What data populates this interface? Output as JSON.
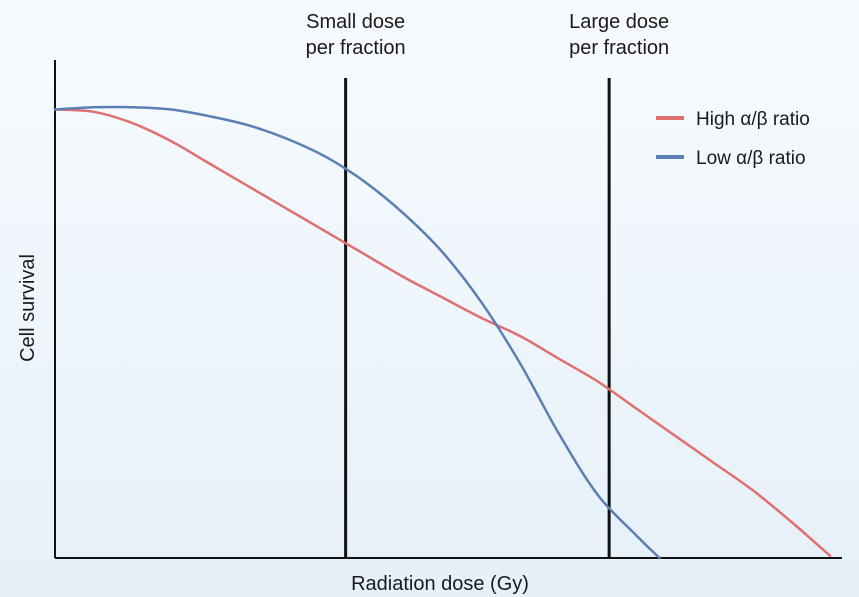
{
  "chart_data": {
    "type": "line",
    "title": "",
    "xlabel": "Radiation dose (Gy)",
    "ylabel": "Cell survival",
    "xlim": [
      0,
      10
    ],
    "ylim": [
      0,
      1
    ],
    "grid": false,
    "legend_position": "top-right",
    "series": [
      {
        "name": "High α/β ratio",
        "color": "#e07070",
        "x": [
          0,
          0.5,
          1,
          1.5,
          2,
          2.5,
          3,
          3.5,
          4,
          4.5,
          5,
          5.5,
          6,
          6.5,
          7,
          7.5,
          8,
          8.5,
          9,
          9.5,
          10
        ],
        "y": [
          0.99,
          0.985,
          0.96,
          0.92,
          0.87,
          0.82,
          0.77,
          0.72,
          0.67,
          0.62,
          0.575,
          0.53,
          0.49,
          0.44,
          0.39,
          0.33,
          0.27,
          0.21,
          0.15,
          0.08,
          0.005
        ]
      },
      {
        "name": "Low α/β ratio",
        "color": "#5a7fb5",
        "x": [
          0,
          0.5,
          1,
          1.5,
          2,
          2.5,
          3,
          3.5,
          4,
          4.5,
          5,
          5.5,
          6,
          6.5,
          7,
          7.5,
          7.8
        ],
        "y": [
          0.99,
          0.995,
          0.995,
          0.99,
          0.975,
          0.955,
          0.925,
          0.885,
          0.83,
          0.76,
          0.675,
          0.565,
          0.43,
          0.275,
          0.14,
          0.05,
          0.0
        ]
      }
    ],
    "annotations": [
      {
        "x": 3.75,
        "label_lines": [
          "Small dose",
          "per fraction"
        ]
      },
      {
        "x": 7.15,
        "label_lines": [
          "Large dose",
          "per fraction"
        ]
      }
    ]
  }
}
